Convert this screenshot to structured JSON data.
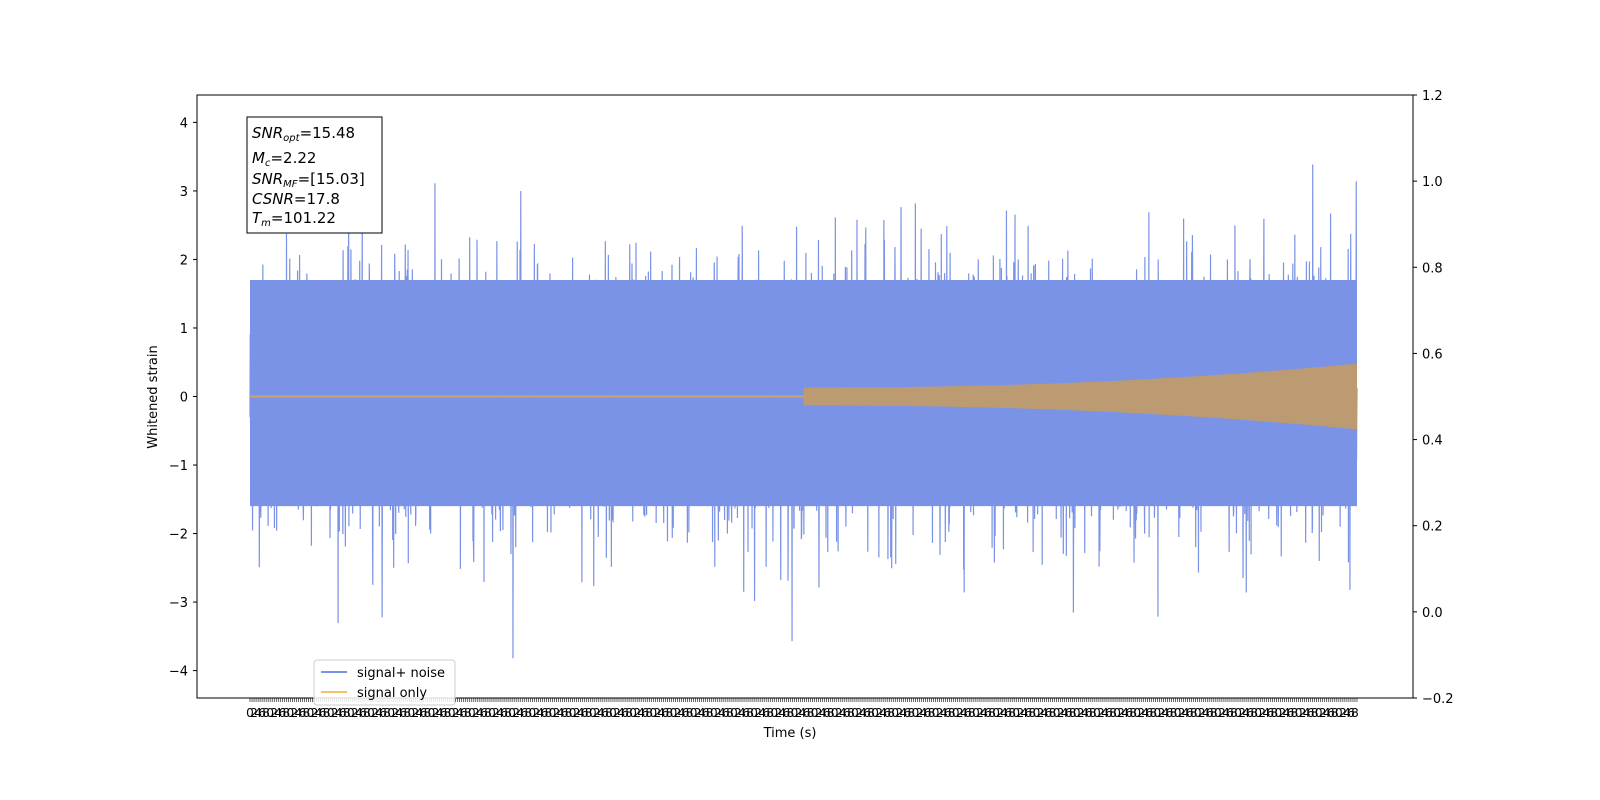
{
  "chart_data": {
    "type": "line",
    "title": "",
    "xlabel": "Time (s)",
    "ylabel": "Whitened strain",
    "y_left_lim": [
      -4.4,
      4.4
    ],
    "y_left_ticks": [
      -4,
      -3,
      -2,
      -1,
      0,
      1,
      2,
      3,
      4
    ],
    "y_right_lim": [
      -0.2,
      1.2
    ],
    "y_right_ticks": [
      "−0.2",
      "0.0",
      "0.2",
      "0.4",
      "0.6",
      "0.8",
      "1.0",
      "1.2"
    ],
    "x_tick_labels_overlapping": true,
    "x_tick_label_count": 550,
    "grid": false,
    "legend_position": "lower-left",
    "series": [
      {
        "name": "signal+ noise",
        "color": "#7b93e6",
        "description": "whitened noisy strain, amplitude roughly within ±2 with spikes to about ±4",
        "range": [
          -3.97,
          4.06
        ]
      },
      {
        "name": "signal only",
        "color": "#f5c26b",
        "description": "chirp signal, zero until about midway then growing amplitude",
        "onset_fraction": 0.5,
        "start_amplitude": 0.13,
        "end_amplitude": 0.48
      }
    ],
    "annotation_box": [
      {
        "main": "SNR",
        "sub": "opt",
        "value": "=15.48"
      },
      {
        "main": "M",
        "sub": "c",
        "value": "=2.22"
      },
      {
        "main": "SNR",
        "sub": "MF",
        "value": "=[15.03]"
      },
      {
        "main": "CSNR",
        "sub": "",
        "value": "=17.8"
      },
      {
        "main": "T",
        "sub": "m",
        "value": "=101.22"
      }
    ]
  }
}
